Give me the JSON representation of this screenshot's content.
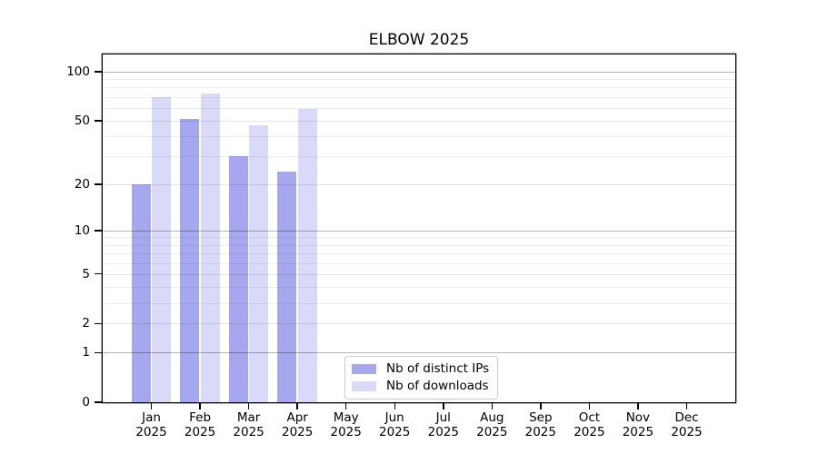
{
  "title": "ELBOW 2025",
  "chart_data": {
    "type": "bar",
    "title": "ELBOW 2025",
    "scale": "log10(1+x)",
    "grid": true,
    "legend_position": "bottom-center-inside",
    "categories": [
      "Jan",
      "Feb",
      "Mar",
      "Apr",
      "May",
      "Jun",
      "Jul",
      "Aug",
      "Sep",
      "Oct",
      "Nov",
      "Dec"
    ],
    "year": "2025",
    "y_ticks": [
      100,
      50,
      20,
      10,
      5,
      2,
      1,
      0
    ],
    "ylim": [
      0,
      128
    ],
    "series": [
      {
        "name": "Nb of distinct IPs",
        "color": "#a7a7f0",
        "values": [
          20,
          51,
          30,
          24,
          null,
          null,
          null,
          null,
          null,
          null,
          null,
          null
        ]
      },
      {
        "name": "Nb of downloads",
        "color": "#d9d9f8",
        "values": [
          70,
          74,
          47,
          59,
          null,
          null,
          null,
          null,
          null,
          null,
          null,
          null
        ]
      }
    ]
  }
}
